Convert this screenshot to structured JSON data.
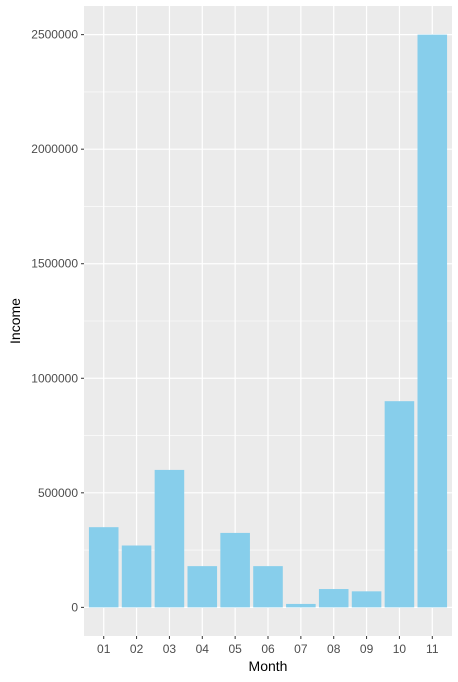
{
  "chart_data": {
    "type": "bar",
    "xlabel": "Month",
    "ylabel": "Income",
    "categories": [
      "01",
      "02",
      "03",
      "04",
      "05",
      "06",
      "07",
      "08",
      "09",
      "10",
      "11"
    ],
    "values": [
      350000,
      270000,
      600000,
      180000,
      325000,
      180000,
      15000,
      80000,
      70000,
      900000,
      2500000
    ],
    "y_ticks": [
      0,
      500000,
      1000000,
      1500000,
      2000000,
      2500000
    ],
    "y_tick_labels": [
      "0",
      "500000",
      "1000000",
      "1500000",
      "2000000",
      "2500000"
    ],
    "ylim": [
      -125000,
      2625000
    ],
    "grid": true,
    "colors": {
      "bar": "#87ceeb",
      "panel": "#ebebeb",
      "grid": "#ffffff"
    }
  }
}
